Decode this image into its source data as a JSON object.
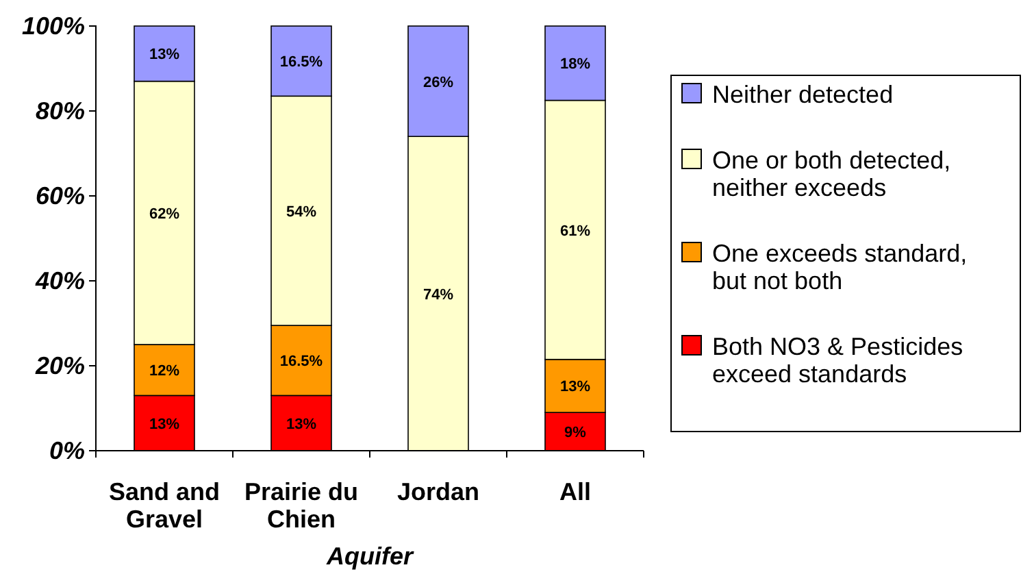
{
  "chart_data": {
    "type": "bar",
    "stacked": true,
    "xlabel": "Aquifer",
    "categories": [
      "Sand and Gravel",
      "Prairie du Chien",
      "Jordan",
      "All"
    ],
    "series": [
      {
        "name": "Both NO3 & Pesticides exceed standards",
        "color": "#ff0000",
        "values": [
          13,
          13,
          0,
          9
        ],
        "value_labels": [
          "13%",
          "13%",
          null,
          "9%"
        ]
      },
      {
        "name": "One exceeds standard, but not both",
        "color": "#ff9900",
        "values": [
          12,
          16.5,
          0,
          12.5
        ],
        "value_labels": [
          "12%",
          "16.5%",
          null,
          "13%"
        ]
      },
      {
        "name": "One or both detected, neither exceeds",
        "color": "#ffffcc",
        "values": [
          62,
          54,
          74,
          61
        ],
        "value_labels": [
          "62%",
          "54%",
          "74%",
          "61%"
        ]
      },
      {
        "name": "Neither detected",
        "color": "#9999ff",
        "values": [
          13,
          16.5,
          26,
          17.5
        ],
        "value_labels": [
          "13%",
          "16.5%",
          "26%",
          "18%"
        ]
      }
    ],
    "ylim": [
      0,
      100
    ],
    "yticks": [
      {
        "value": 0,
        "label": "0%"
      },
      {
        "value": 20,
        "label": "20%"
      },
      {
        "value": 40,
        "label": "40%"
      },
      {
        "value": 60,
        "label": "60%"
      },
      {
        "value": 80,
        "label": "80%"
      },
      {
        "value": 100,
        "label": "100%"
      }
    ],
    "legend": "right"
  }
}
